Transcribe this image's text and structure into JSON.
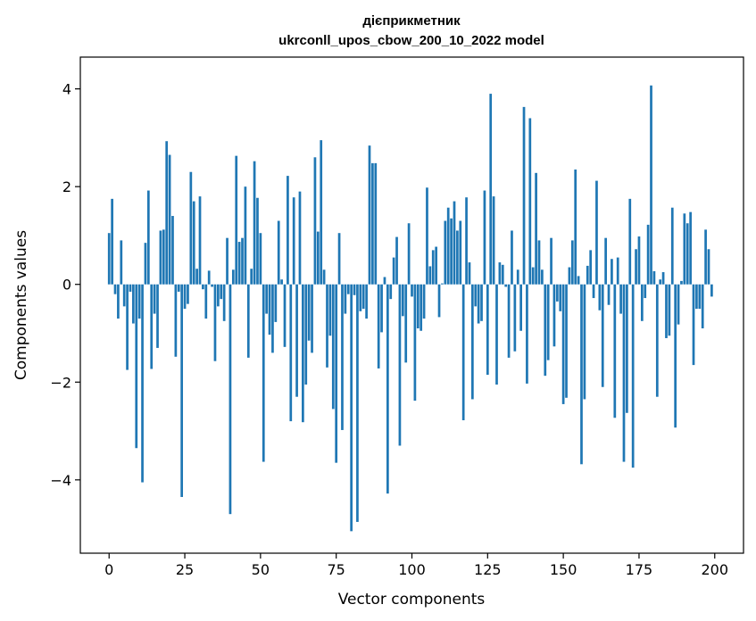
{
  "chart_data": {
    "type": "bar",
    "title": "дієприкметник",
    "subtitle": "ukrconll_upos_cbow_200_10_2022 model",
    "xlabel": "Vector components",
    "ylabel": "Components values",
    "xlim": [
      -9.5,
      209.5
    ],
    "ylim": [
      -5.5,
      4.65
    ],
    "xticks": [
      0,
      25,
      50,
      75,
      100,
      125,
      150,
      175,
      200
    ],
    "yticks": [
      -4,
      -2,
      0,
      2,
      4
    ],
    "xtick_labels": [
      "0",
      "25",
      "50",
      "75",
      "100",
      "125",
      "150",
      "175",
      "200"
    ],
    "ytick_labels": [
      "−4",
      "−2",
      "0",
      "2",
      "4"
    ],
    "bar_color": "#1f77b4",
    "grid": false,
    "values": [
      1.05,
      1.75,
      -0.2,
      -0.7,
      0.9,
      -0.45,
      -1.75,
      -0.15,
      -0.8,
      -3.35,
      -0.7,
      -4.05,
      0.85,
      1.92,
      -1.73,
      -0.6,
      -1.3,
      1.1,
      1.12,
      2.93,
      2.65,
      1.4,
      -1.48,
      -0.15,
      -4.35,
      -0.5,
      -0.4,
      2.3,
      1.7,
      0.32,
      1.8,
      -0.1,
      -0.7,
      0.28,
      -0.05,
      -1.57,
      -0.45,
      -0.3,
      -0.75,
      0.95,
      -4.7,
      0.3,
      2.63,
      0.87,
      0.95,
      2.0,
      -1.5,
      0.32,
      2.52,
      1.77,
      1.05,
      -3.63,
      -0.6,
      -1.03,
      -1.4,
      -0.77,
      1.3,
      0.1,
      -1.28,
      2.22,
      -2.8,
      1.78,
      -2.3,
      1.9,
      -2.82,
      -2.05,
      -1.15,
      -1.4,
      2.6,
      1.08,
      2.95,
      0.3,
      -1.7,
      -1.05,
      -2.55,
      -3.65,
      1.05,
      -2.98,
      -0.6,
      -0.2,
      -5.05,
      -0.22,
      -4.86,
      -0.55,
      -0.5,
      -0.7,
      2.84,
      2.48,
      2.48,
      -1.72,
      -0.98,
      0.15,
      -4.28,
      -0.3,
      0.55,
      0.97,
      -3.3,
      -0.65,
      -1.6,
      1.25,
      -0.25,
      -2.38,
      -0.9,
      -0.95,
      -0.7,
      1.98,
      0.37,
      0.7,
      0.77,
      -0.67,
      0.02,
      1.3,
      1.57,
      1.35,
      1.7,
      1.1,
      1.3,
      -2.78,
      1.78,
      0.45,
      -2.35,
      -0.45,
      -0.8,
      -0.75,
      1.92,
      -1.85,
      3.9,
      1.8,
      -2.05,
      0.45,
      0.4,
      -0.05,
      -1.5,
      1.1,
      -1.37,
      0.3,
      -0.95,
      3.63,
      -2.03,
      3.4,
      0.35,
      2.28,
      0.9,
      0.3,
      -1.87,
      -1.55,
      0.95,
      -1.27,
      -0.35,
      -0.55,
      -2.45,
      -2.32,
      0.35,
      0.9,
      2.35,
      0.17,
      -3.68,
      -2.35,
      0.38,
      0.7,
      -0.28,
      2.12,
      -0.53,
      -2.1,
      0.95,
      -0.42,
      0.52,
      -2.73,
      0.55,
      -0.6,
      -3.63,
      -2.63,
      1.75,
      -3.75,
      0.72,
      0.98,
      -0.75,
      -0.28,
      1.22,
      4.07,
      0.27,
      -2.3,
      0.1,
      0.25,
      -1.1,
      -1.05,
      1.57,
      -2.93,
      -0.82,
      0.07,
      1.45,
      1.25,
      1.48,
      -1.65,
      -0.5,
      -0.5,
      -0.9,
      1.12,
      0.72,
      -0.25
    ]
  }
}
